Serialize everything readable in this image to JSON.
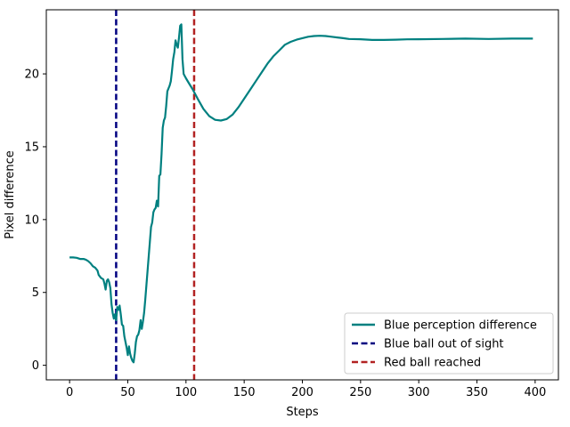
{
  "chart_data": {
    "type": "line",
    "title": "",
    "xlabel": "Steps",
    "ylabel": "Pixel difference",
    "xlim": [
      -20,
      420
    ],
    "ylim": [
      -1,
      24.4
    ],
    "xticks": [
      0,
      50,
      100,
      150,
      200,
      250,
      300,
      350,
      400
    ],
    "yticks": [
      0,
      5,
      10,
      15,
      20
    ],
    "grid": false,
    "legend_position": "lower-right",
    "series": [
      {
        "name": "Blue perception difference",
        "color": "#008080",
        "style": "solid",
        "points": [
          [
            0,
            7.4
          ],
          [
            3,
            7.4
          ],
          [
            6,
            7.38
          ],
          [
            9,
            7.3
          ],
          [
            12,
            7.3
          ],
          [
            14,
            7.25
          ],
          [
            16,
            7.15
          ],
          [
            18,
            7.0
          ],
          [
            20,
            6.8
          ],
          [
            22,
            6.7
          ],
          [
            24,
            6.5
          ],
          [
            25,
            6.2
          ],
          [
            27,
            6.0
          ],
          [
            29,
            5.9
          ],
          [
            30,
            5.6
          ],
          [
            31,
            5.2
          ],
          [
            32,
            5.8
          ],
          [
            33,
            5.9
          ],
          [
            34,
            5.7
          ],
          [
            35,
            5.3
          ],
          [
            36,
            4.2
          ],
          [
            37,
            3.6
          ],
          [
            38,
            3.2
          ],
          [
            39,
            3.5
          ],
          [
            40,
            3.1
          ],
          [
            41,
            4.0
          ],
          [
            42,
            3.8
          ],
          [
            43,
            4.1
          ],
          [
            44,
            3.5
          ],
          [
            45,
            2.8
          ],
          [
            46,
            2.7
          ],
          [
            47,
            2.0
          ],
          [
            48,
            1.6
          ],
          [
            49,
            1.2
          ],
          [
            50,
            0.7
          ],
          [
            51,
            1.3
          ],
          [
            52,
            0.8
          ],
          [
            53,
            0.5
          ],
          [
            54,
            0.3
          ],
          [
            55,
            0.2
          ],
          [
            56,
            0.8
          ],
          [
            57,
            1.6
          ],
          [
            58,
            2.0
          ],
          [
            59,
            2.1
          ],
          [
            60,
            2.4
          ],
          [
            61,
            3.1
          ],
          [
            62,
            2.5
          ],
          [
            63,
            3.0
          ],
          [
            64,
            3.6
          ],
          [
            65,
            4.5
          ],
          [
            66,
            5.5
          ],
          [
            67,
            6.5
          ],
          [
            68,
            7.5
          ],
          [
            69,
            8.5
          ],
          [
            70,
            9.5
          ],
          [
            71,
            9.8
          ],
          [
            72,
            10.5
          ],
          [
            73,
            10.7
          ],
          [
            74,
            10.8
          ],
          [
            75,
            11.3
          ],
          [
            76,
            10.9
          ],
          [
            77,
            13.0
          ],
          [
            78,
            13.1
          ],
          [
            79,
            14.5
          ],
          [
            80,
            16.3
          ],
          [
            81,
            16.8
          ],
          [
            82,
            17.0
          ],
          [
            83,
            17.8
          ],
          [
            84,
            18.8
          ],
          [
            85,
            19.0
          ],
          [
            86,
            19.2
          ],
          [
            87,
            19.5
          ],
          [
            88,
            20.2
          ],
          [
            89,
            21.0
          ],
          [
            90,
            21.5
          ],
          [
            91,
            22.3
          ],
          [
            92,
            22.0
          ],
          [
            93,
            21.8
          ],
          [
            94,
            22.5
          ],
          [
            95,
            23.3
          ],
          [
            96,
            23.4
          ],
          [
            97,
            21.0
          ],
          [
            98,
            20.0
          ],
          [
            100,
            19.7
          ],
          [
            103,
            19.3
          ],
          [
            106,
            18.9
          ],
          [
            110,
            18.3
          ],
          [
            115,
            17.6
          ],
          [
            120,
            17.1
          ],
          [
            125,
            16.85
          ],
          [
            130,
            16.8
          ],
          [
            135,
            16.9
          ],
          [
            140,
            17.2
          ],
          [
            145,
            17.7
          ],
          [
            150,
            18.3
          ],
          [
            155,
            18.9
          ],
          [
            160,
            19.5
          ],
          [
            165,
            20.1
          ],
          [
            170,
            20.7
          ],
          [
            175,
            21.2
          ],
          [
            180,
            21.6
          ],
          [
            185,
            22.0
          ],
          [
            190,
            22.2
          ],
          [
            195,
            22.35
          ],
          [
            200,
            22.45
          ],
          [
            205,
            22.55
          ],
          [
            210,
            22.6
          ],
          [
            215,
            22.62
          ],
          [
            220,
            22.6
          ],
          [
            225,
            22.55
          ],
          [
            230,
            22.5
          ],
          [
            235,
            22.45
          ],
          [
            240,
            22.4
          ],
          [
            250,
            22.38
          ],
          [
            260,
            22.33
          ],
          [
            270,
            22.33
          ],
          [
            280,
            22.35
          ],
          [
            290,
            22.37
          ],
          [
            300,
            22.38
          ],
          [
            320,
            22.4
          ],
          [
            340,
            22.42
          ],
          [
            360,
            22.4
          ],
          [
            380,
            22.42
          ],
          [
            398,
            22.42
          ]
        ]
      }
    ],
    "vlines": [
      {
        "name": "Blue ball out of sight",
        "x": 40,
        "color": "#000080",
        "style": "dashed"
      },
      {
        "name": "Red ball reached",
        "x": 107,
        "color": "#b22222",
        "style": "dashed"
      }
    ]
  }
}
